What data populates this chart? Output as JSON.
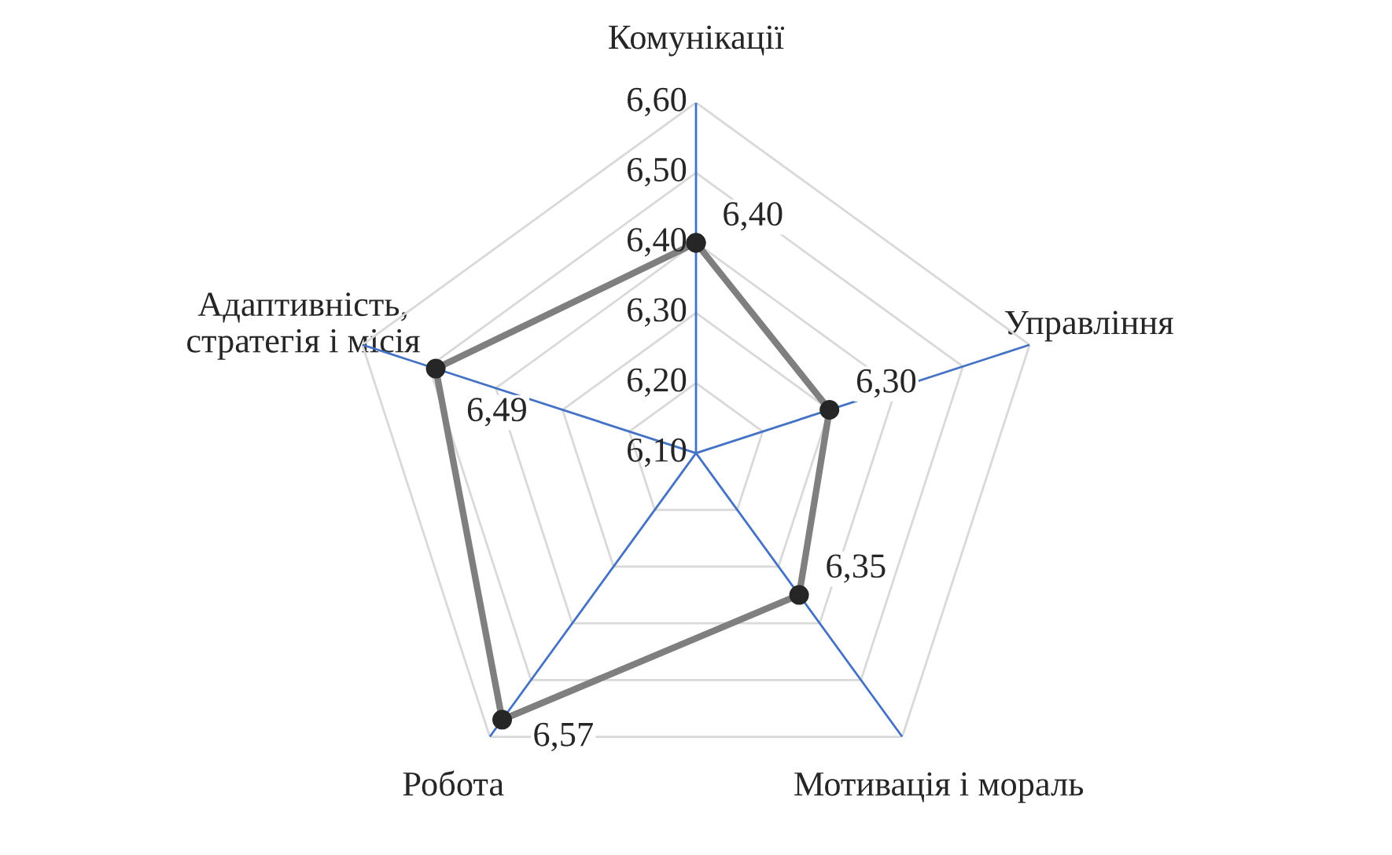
{
  "chart_data": {
    "type": "radar",
    "categories": [
      "Комунікації",
      "Управління",
      "Мотивація і мораль",
      "Робота",
      "Адаптивність,\nстратегія і місія"
    ],
    "series": [
      {
        "color": "#7f7f7f",
        "values": [
          6.4,
          6.3,
          6.35,
          6.57,
          6.49
        ],
        "value_labels": [
          "6,40",
          "6,30",
          "6,35",
          "6,57",
          "6,49"
        ]
      }
    ],
    "ylim": [
      6.1,
      6.6
    ],
    "yticks": [
      {
        "value": 6.1,
        "label": "6,10"
      },
      {
        "value": 6.2,
        "label": "6,20"
      },
      {
        "value": 6.3,
        "label": "6,30"
      },
      {
        "value": 6.4,
        "label": "6,40"
      },
      {
        "value": 6.5,
        "label": "6,50"
      },
      {
        "value": 6.6,
        "label": "6,60"
      }
    ],
    "grid": true,
    "marker": "circle",
    "line_style": "solid"
  }
}
